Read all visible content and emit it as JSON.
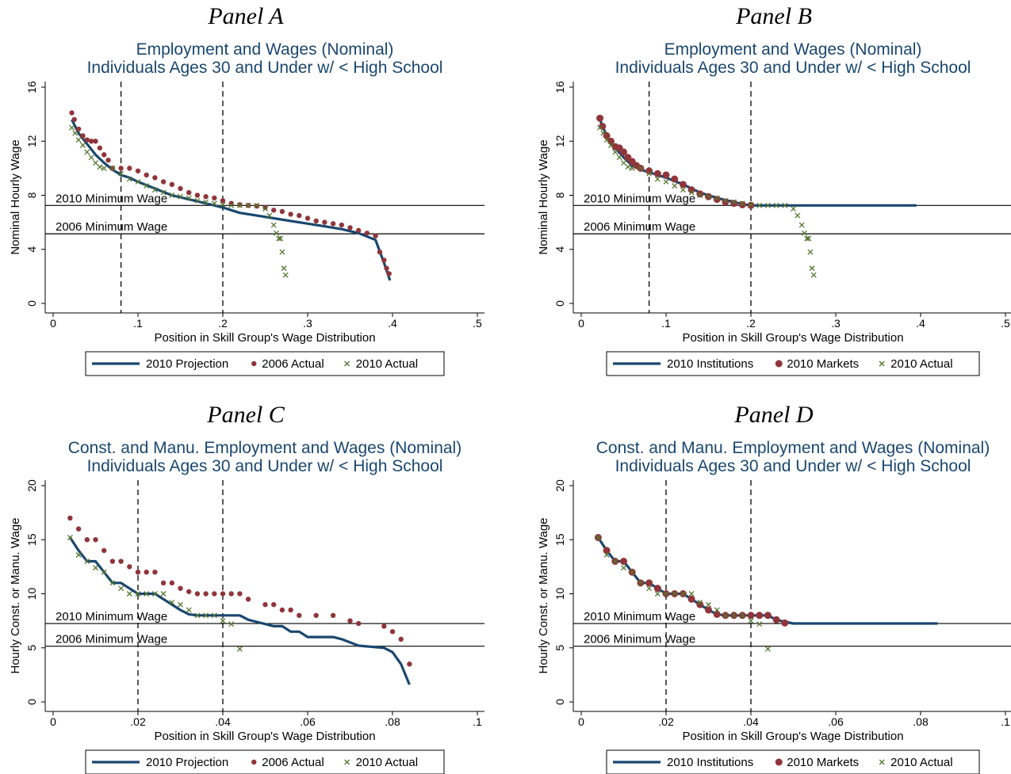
{
  "colors": {
    "projection": "#1a476f",
    "markets": "#90353b",
    "actual": "#55752f",
    "title": "#1a476f"
  },
  "chart_data": [
    {
      "type": "scatter",
      "panel_label": "Panel A",
      "title": "Employment and Wages (Nominal)",
      "subtitle": "Individuals Ages 30 and Under w/ < High School",
      "xlabel": "Position in Skill Group's Wage Distribution",
      "ylabel": "Nominal Hourly Wage",
      "xlim": [
        0,
        0.5
      ],
      "ylim": [
        0,
        16
      ],
      "xticks": [
        0,
        0.1,
        0.2,
        0.3,
        0.4,
        0.5
      ],
      "xtick_labels": [
        "0",
        ".1",
        ".2",
        ".3",
        ".4",
        ".5"
      ],
      "yticks": [
        0,
        4,
        8,
        12,
        16
      ],
      "ytick_labels": [
        "0",
        "4",
        "8",
        "12",
        "16"
      ],
      "vlines": [
        0.08,
        0.2
      ],
      "hlines": [
        {
          "y": 7.25,
          "label": "2010 Minimum Wage"
        },
        {
          "y": 5.15,
          "label": "2006 Minimum Wage"
        }
      ],
      "legend": [
        "2010 Projection",
        "2006 Actual",
        "2010 Actual"
      ],
      "legend_position": "bottom",
      "series": [
        {
          "name": "2010 Projection",
          "style": "line",
          "x": [
            0.022,
            0.03,
            0.04,
            0.05,
            0.06,
            0.07,
            0.08,
            0.09,
            0.1,
            0.12,
            0.14,
            0.16,
            0.18,
            0.2,
            0.21,
            0.22,
            0.24,
            0.26,
            0.28,
            0.3,
            0.32,
            0.34,
            0.36,
            0.38,
            0.39,
            0.397
          ],
          "y": [
            13.6,
            12.6,
            11.8,
            11,
            10.4,
            9.9,
            9.5,
            9.3,
            9,
            8.5,
            8,
            7.7,
            7.4,
            7.1,
            6.9,
            6.7,
            6.5,
            6.3,
            6.1,
            5.9,
            5.7,
            5.5,
            5.2,
            4.7,
            3,
            1.7
          ]
        },
        {
          "name": "2006 Actual",
          "style": "dot",
          "x": [
            0.022,
            0.025,
            0.03,
            0.035,
            0.04,
            0.045,
            0.05,
            0.055,
            0.06,
            0.065,
            0.07,
            0.08,
            0.09,
            0.1,
            0.11,
            0.12,
            0.13,
            0.14,
            0.15,
            0.16,
            0.17,
            0.18,
            0.19,
            0.2,
            0.21,
            0.22,
            0.23,
            0.24,
            0.25,
            0.26,
            0.27,
            0.28,
            0.29,
            0.3,
            0.31,
            0.32,
            0.33,
            0.34,
            0.35,
            0.36,
            0.37,
            0.38,
            0.385,
            0.39,
            0.393,
            0.396
          ],
          "y": [
            14.1,
            13.6,
            12.9,
            12.4,
            12.1,
            12,
            12,
            11.5,
            11,
            10.6,
            10,
            10,
            10,
            9.8,
            9.5,
            9.3,
            9,
            8.8,
            8.5,
            8.2,
            8,
            7.9,
            7.8,
            7.6,
            7.4,
            7.3,
            7.25,
            7.2,
            7.1,
            6.9,
            6.8,
            6.6,
            6.5,
            6.3,
            6.1,
            6,
            5.9,
            5.8,
            5.6,
            5.4,
            5.2,
            5,
            3.8,
            3.2,
            2.6,
            2.2
          ]
        },
        {
          "name": "2010 Actual",
          "style": "x",
          "x": [
            0.022,
            0.026,
            0.03,
            0.035,
            0.04,
            0.045,
            0.05,
            0.055,
            0.06,
            0.07,
            0.08,
            0.09,
            0.1,
            0.11,
            0.12,
            0.13,
            0.14,
            0.15,
            0.16,
            0.17,
            0.18,
            0.19,
            0.2,
            0.21,
            0.22,
            0.23,
            0.24,
            0.25,
            0.255,
            0.26,
            0.263,
            0.266,
            0.268,
            0.27,
            0.272,
            0.274
          ],
          "y": [
            13,
            12.6,
            12.1,
            11.7,
            11.2,
            10.8,
            10.4,
            10.1,
            10,
            10,
            9.6,
            9.2,
            9,
            8.7,
            8.4,
            8.2,
            8,
            7.9,
            7.8,
            7.6,
            7.5,
            7.4,
            7.3,
            7.25,
            7.25,
            7.25,
            7.25,
            7,
            6.5,
            5.8,
            5.2,
            4.8,
            4.8,
            3.8,
            2.6,
            2.1
          ]
        }
      ]
    },
    {
      "type": "scatter",
      "panel_label": "Panel B",
      "title": "Employment and Wages (Nominal)",
      "subtitle": "Individuals Ages 30 and Under w/ < High School",
      "xlabel": "Position in Skill Group's Wage Distribution",
      "ylabel": "Nominal Hourly Wage",
      "xlim": [
        0,
        0.5
      ],
      "ylim": [
        0,
        16
      ],
      "xticks": [
        0,
        0.1,
        0.2,
        0.3,
        0.4,
        0.5
      ],
      "xtick_labels": [
        "0",
        ".1",
        ".2",
        ".3",
        ".4",
        ".5"
      ],
      "yticks": [
        0,
        4,
        8,
        12,
        16
      ],
      "ytick_labels": [
        "0",
        "4",
        "8",
        "12",
        "16"
      ],
      "vlines": [
        0.08,
        0.2
      ],
      "hlines": [
        {
          "y": 7.25,
          "label": "2010 Minimum Wage"
        },
        {
          "y": 5.15,
          "label": "2006 Minimum Wage"
        }
      ],
      "legend": [
        "2010 Institutions",
        "2010 Markets",
        "2010 Actual"
      ],
      "legend_position": "bottom",
      "series": [
        {
          "name": "2010 Institutions",
          "style": "line",
          "x": [
            0.022,
            0.03,
            0.04,
            0.05,
            0.06,
            0.07,
            0.08,
            0.09,
            0.1,
            0.12,
            0.14,
            0.16,
            0.18,
            0.19,
            0.2,
            0.25,
            0.3,
            0.35,
            0.395
          ],
          "y": [
            13.6,
            12.4,
            11.5,
            10.8,
            10.2,
            9.9,
            9.7,
            9.5,
            9.3,
            8.8,
            8.2,
            7.8,
            7.5,
            7.35,
            7.25,
            7.25,
            7.25,
            7.25,
            7.25
          ]
        },
        {
          "name": "2010 Markets",
          "style": "dot",
          "x": [
            0.022,
            0.025,
            0.03,
            0.035,
            0.04,
            0.045,
            0.05,
            0.055,
            0.06,
            0.065,
            0.07,
            0.08,
            0.09,
            0.1,
            0.11,
            0.12,
            0.13,
            0.14,
            0.15,
            0.16,
            0.17,
            0.18,
            0.19,
            0.2
          ],
          "y": [
            13.7,
            13.1,
            12.4,
            12,
            11.6,
            11.5,
            11.2,
            10.8,
            10.5,
            10.2,
            10,
            9.8,
            9.6,
            9.5,
            9.2,
            8.8,
            8.4,
            8.1,
            7.9,
            7.7,
            7.5,
            7.4,
            7.3,
            7.25
          ]
        },
        {
          "name": "2010 Actual",
          "style": "x",
          "x": [
            0.022,
            0.026,
            0.03,
            0.035,
            0.04,
            0.045,
            0.05,
            0.055,
            0.06,
            0.07,
            0.08,
            0.09,
            0.1,
            0.11,
            0.12,
            0.13,
            0.14,
            0.15,
            0.16,
            0.17,
            0.18,
            0.19,
            0.2,
            0.21,
            0.22,
            0.23,
            0.24,
            0.25,
            0.255,
            0.26,
            0.263,
            0.266,
            0.268,
            0.27,
            0.272,
            0.274
          ],
          "y": [
            13,
            12.6,
            12.1,
            11.7,
            11.2,
            10.8,
            10.4,
            10.1,
            10,
            10,
            9.6,
            9.2,
            9,
            8.7,
            8.4,
            8.2,
            8,
            7.9,
            7.8,
            7.6,
            7.5,
            7.4,
            7.3,
            7.25,
            7.25,
            7.25,
            7.25,
            7,
            6.5,
            5.8,
            5.2,
            4.8,
            4.8,
            3.8,
            2.6,
            2.1
          ]
        }
      ]
    },
    {
      "type": "scatter",
      "panel_label": "Panel C",
      "title": "Const. and Manu. Employment and Wages (Nominal)",
      "subtitle": "Individuals Ages 30 and Under w/ < High School",
      "xlabel": "Position in Skill Group's Wage Distribution",
      "ylabel": "Hourly Const. or Manu. Wage",
      "xlim": [
        0,
        0.1
      ],
      "ylim": [
        0,
        20
      ],
      "xticks": [
        0,
        0.02,
        0.04,
        0.06,
        0.08,
        0.1
      ],
      "xtick_labels": [
        "0",
        ".02",
        ".04",
        ".06",
        ".08",
        ".1"
      ],
      "yticks": [
        0,
        5,
        10,
        15,
        20
      ],
      "ytick_labels": [
        "0",
        "5",
        "10",
        "15",
        "20"
      ],
      "vlines": [
        0.02,
        0.04
      ],
      "hlines": [
        {
          "y": 7.25,
          "label": "2010 Minimum Wage"
        },
        {
          "y": 5.15,
          "label": "2006 Minimum Wage"
        }
      ],
      "legend": [
        "2010 Projection",
        "2006 Actual",
        "2010 Actual"
      ],
      "legend_position": "bottom",
      "series": [
        {
          "name": "2010 Projection",
          "style": "line",
          "x": [
            0.004,
            0.006,
            0.008,
            0.01,
            0.012,
            0.014,
            0.016,
            0.018,
            0.02,
            0.024,
            0.026,
            0.028,
            0.03,
            0.032,
            0.034,
            0.036,
            0.044,
            0.046,
            0.048,
            0.05,
            0.052,
            0.054,
            0.056,
            0.058,
            0.06,
            0.062,
            0.066,
            0.068,
            0.07,
            0.072,
            0.078,
            0.08,
            0.082,
            0.084
          ],
          "y": [
            15.2,
            14,
            13,
            13,
            12,
            11,
            11,
            10.5,
            10,
            10,
            9.5,
            9,
            8.5,
            8.1,
            8,
            8,
            8,
            7.6,
            7.4,
            7.2,
            7,
            7,
            6.5,
            6.5,
            6,
            6,
            6,
            5.8,
            5.5,
            5.2,
            5,
            4.6,
            3.5,
            1.6
          ]
        },
        {
          "name": "2006 Actual",
          "style": "dot",
          "x": [
            0.004,
            0.006,
            0.008,
            0.01,
            0.012,
            0.014,
            0.016,
            0.018,
            0.02,
            0.022,
            0.024,
            0.026,
            0.028,
            0.03,
            0.032,
            0.034,
            0.036,
            0.038,
            0.04,
            0.042,
            0.044,
            0.046,
            0.05,
            0.052,
            0.054,
            0.056,
            0.058,
            0.062,
            0.066,
            0.07,
            0.072,
            0.078,
            0.08,
            0.082,
            0.084
          ],
          "y": [
            17,
            16,
            15,
            15,
            14,
            13,
            13,
            12.5,
            12,
            12,
            12,
            11,
            11,
            10.5,
            10.2,
            10,
            10,
            10,
            10,
            10,
            10,
            9.5,
            9,
            9,
            8.5,
            8.5,
            8,
            8,
            8,
            7.5,
            7.25,
            7,
            6.5,
            5.8,
            3.5
          ]
        },
        {
          "name": "2010 Actual",
          "style": "x",
          "x": [
            0.004,
            0.006,
            0.008,
            0.01,
            0.012,
            0.014,
            0.016,
            0.018,
            0.02,
            0.022,
            0.024,
            0.026,
            0.028,
            0.03,
            0.032,
            0.034,
            0.036,
            0.038,
            0.04,
            0.042,
            0.044
          ],
          "y": [
            15.2,
            13.6,
            13,
            12.4,
            12,
            11,
            10.5,
            10,
            10,
            10,
            10,
            10,
            9.2,
            9,
            8.5,
            8,
            8,
            8,
            7.5,
            7.2,
            4.9
          ]
        }
      ]
    },
    {
      "type": "scatter",
      "panel_label": "Panel D",
      "title": "Const. and Manu. Employment and Wages (Nominal)",
      "subtitle": "Individuals Ages 30 and Under w/ < High School",
      "xlabel": "Position in Skill Group's Wage Distribution",
      "ylabel": "Hourly Const. or Manu. Wage",
      "xlim": [
        0,
        0.1
      ],
      "ylim": [
        0,
        20
      ],
      "xticks": [
        0,
        0.02,
        0.04,
        0.06,
        0.08,
        0.1
      ],
      "xtick_labels": [
        "0",
        ".02",
        ".04",
        ".06",
        ".08",
        ".1"
      ],
      "yticks": [
        0,
        5,
        10,
        15,
        20
      ],
      "ytick_labels": [
        "0",
        "5",
        "10",
        "15",
        "20"
      ],
      "vlines": [
        0.02,
        0.04
      ],
      "hlines": [
        {
          "y": 7.25,
          "label": "2010 Minimum Wage"
        },
        {
          "y": 5.15,
          "label": "2006 Minimum Wage"
        }
      ],
      "legend": [
        "2010 Institutions",
        "2010 Markets",
        "2010 Actual"
      ],
      "legend_position": "bottom",
      "series": [
        {
          "name": "2010 Institutions",
          "style": "line",
          "x": [
            0.004,
            0.006,
            0.008,
            0.01,
            0.012,
            0.014,
            0.016,
            0.018,
            0.02,
            0.024,
            0.026,
            0.028,
            0.03,
            0.032,
            0.034,
            0.044,
            0.046,
            0.048,
            0.05,
            0.06,
            0.07,
            0.084
          ],
          "y": [
            15.2,
            14,
            13,
            13,
            12,
            11,
            11,
            10.5,
            10,
            10,
            9.5,
            9,
            8.5,
            8.1,
            8,
            8,
            7.6,
            7.4,
            7.25,
            7.25,
            7.25,
            7.25
          ]
        },
        {
          "name": "2010 Markets",
          "style": "dot",
          "x": [
            0.004,
            0.006,
            0.008,
            0.01,
            0.012,
            0.014,
            0.016,
            0.018,
            0.02,
            0.022,
            0.024,
            0.026,
            0.028,
            0.03,
            0.032,
            0.034,
            0.036,
            0.038,
            0.04,
            0.042,
            0.044,
            0.046,
            0.048
          ],
          "y": [
            15.2,
            14,
            13,
            13,
            12,
            11,
            11,
            10.5,
            10,
            10,
            10,
            9.5,
            9,
            8.5,
            8.1,
            8,
            8,
            8,
            8,
            8,
            8,
            7.6,
            7.3
          ]
        },
        {
          "name": "2010 Actual",
          "style": "x",
          "x": [
            0.004,
            0.006,
            0.008,
            0.01,
            0.012,
            0.014,
            0.016,
            0.018,
            0.02,
            0.022,
            0.024,
            0.026,
            0.028,
            0.03,
            0.032,
            0.034,
            0.036,
            0.038,
            0.04,
            0.042,
            0.044
          ],
          "y": [
            15.2,
            13.6,
            13,
            12.4,
            12,
            11,
            10.5,
            10,
            10,
            10,
            10,
            10,
            9.2,
            9,
            8.5,
            8,
            8,
            8,
            7.5,
            7.2,
            4.9
          ]
        }
      ]
    }
  ]
}
